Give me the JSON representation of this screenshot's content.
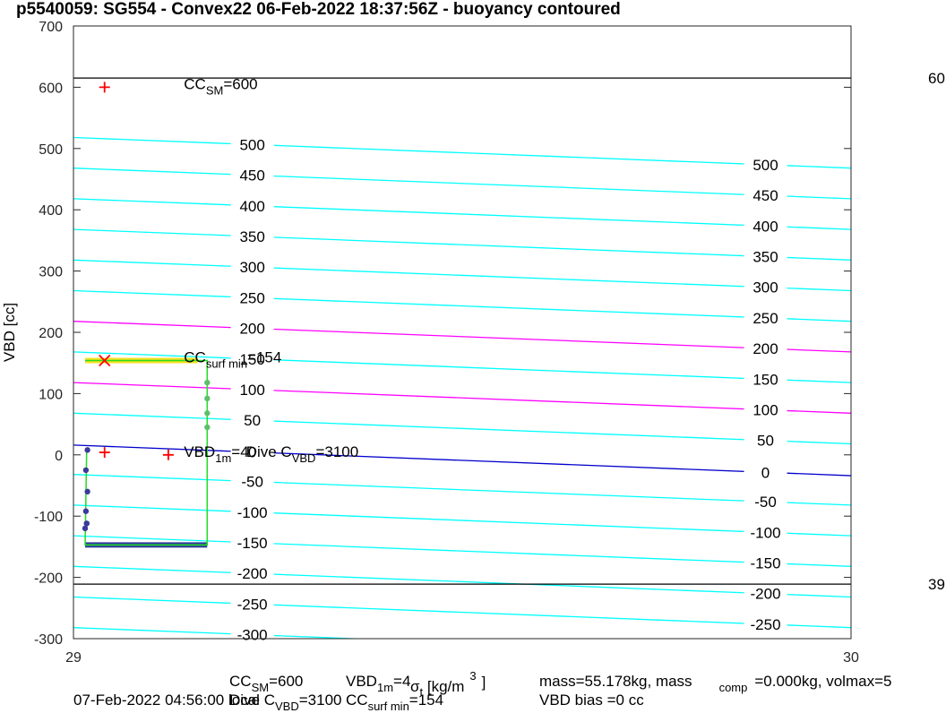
{
  "chart_data": {
    "type": "contour",
    "title": "p5540059: SG554 - Convex22 06-Feb-2022 18:37:56Z - buoyancy contoured",
    "ylabel": "VBD [cc]",
    "xlabel": [
      "σ",
      "t",
      " [kg/m",
      "3",
      "]"
    ],
    "xlim": [
      29,
      30
    ],
    "xticks": [
      29,
      30
    ],
    "ylim": [
      -300,
      700
    ],
    "yticks": [
      -300,
      -200,
      -100,
      0,
      100,
      200,
      300,
      400,
      500,
      600,
      700
    ],
    "contours": {
      "x": [
        29,
        30
      ],
      "label_x": [
        29.23,
        29.89
      ],
      "lines": [
        {
          "level": 500,
          "color": "#00ffff",
          "values": [
            518,
            468
          ]
        },
        {
          "level": 450,
          "color": "#00ffff",
          "values": [
            468,
            418
          ]
        },
        {
          "level": 400,
          "color": "#00ffff",
          "values": [
            418,
            368
          ]
        },
        {
          "level": 350,
          "color": "#00ffff",
          "values": [
            368,
            318
          ]
        },
        {
          "level": 300,
          "color": "#00ffff",
          "values": [
            318,
            268
          ]
        },
        {
          "level": 250,
          "color": "#00ffff",
          "values": [
            268,
            218
          ]
        },
        {
          "level": 200,
          "color": "#ff00ff",
          "values": [
            218,
            168
          ]
        },
        {
          "level": 150,
          "color": "#00ffff",
          "values": [
            168,
            118
          ]
        },
        {
          "level": 100,
          "color": "#ff00ff",
          "values": [
            118,
            68
          ]
        },
        {
          "level": 50,
          "color": "#00ffff",
          "values": [
            68,
            18
          ]
        },
        {
          "level": 0,
          "color": "#0000cc",
          "values": [
            16,
            -34
          ]
        },
        {
          "level": -50,
          "color": "#00ffff",
          "values": [
            -32,
            -82
          ]
        },
        {
          "level": -100,
          "color": "#00ffff",
          "values": [
            -82,
            -132
          ]
        },
        {
          "level": -150,
          "color": "#00ffff",
          "values": [
            -132,
            -182
          ]
        },
        {
          "level": -200,
          "color": "#00ffff",
          "values": [
            -182,
            -232
          ]
        },
        {
          "level": -250,
          "color": "#00ffff",
          "values": [
            -232,
            -282
          ]
        },
        {
          "level": -300,
          "color": "#00ffff",
          "values": [
            -282,
            -332
          ]
        }
      ]
    },
    "hlines": [
      {
        "value": 615,
        "color": "#000000",
        "edge_label": "60"
      },
      {
        "value": -211,
        "color": "#000000",
        "edge_label": "39"
      }
    ],
    "bands": [
      {
        "color": "#f5e11d",
        "x": [
          29.015,
          29.16
        ],
        "value": 154
      },
      {
        "color": "#2f3f9a",
        "x": [
          29.015,
          29.172
        ],
        "value": -147
      }
    ],
    "trajectory": {
      "color": "#22dd22",
      "x": [
        29.015,
        29.172,
        29.172,
        29.015,
        29.017
      ],
      "y": [
        154,
        154,
        -147,
        -147,
        8
      ]
    },
    "points": {
      "x": [
        29.018,
        29.016,
        29.018,
        29.016,
        29.017,
        29.015,
        29.017,
        29.172,
        29.172,
        29.172,
        29.172
      ],
      "y": [
        8,
        -25,
        -60,
        -92,
        -112,
        -120,
        -112,
        118,
        92,
        68,
        45
      ],
      "colors": [
        "#3b3a9a",
        "#3b3a9a",
        "#3b3a9a",
        "#3b3a9a",
        "#3b3a9a",
        "#3b3a9a",
        "#3b3a9a",
        "#5cbf6b",
        "#5cbf6b",
        "#5cbf6b",
        "#5cbf6b"
      ]
    },
    "markers": [
      {
        "x": 29.04,
        "y": 600,
        "symbol": "+",
        "color": "#ff0000"
      },
      {
        "x": 29.04,
        "y": 154,
        "symbol": "x",
        "color": "#ff0000"
      },
      {
        "x": 29.04,
        "y": 4,
        "symbol": "+",
        "color": "#ff0000"
      },
      {
        "x": 29.122,
        "y": 0,
        "symbol": "+",
        "color": "#ff0000"
      }
    ],
    "annotations": [
      {
        "x": 29.142,
        "y": 600,
        "parts": [
          "CC",
          "SM",
          "=600"
        ]
      },
      {
        "x": 29.142,
        "y": 154,
        "parts": [
          "CC",
          "surf min",
          "=154"
        ]
      },
      {
        "x": 29.142,
        "y": 0,
        "parts": [
          "VBD",
          "1m",
          "=4"
        ]
      },
      {
        "x": 29.222,
        "y": 0,
        "parts": [
          "Dive C",
          "VBD",
          "=3100"
        ]
      }
    ],
    "footer": [
      [
        "CC",
        "SM",
        "=600"
      ],
      [
        "VBD",
        "1m",
        "=4"
      ],
      [
        "mass=55.178kg, mass",
        "comp",
        "=0.000kg, volmax=5"
      ],
      [
        "07-Feb-2022 04:56:00 local"
      ],
      [
        "Dive C",
        "VBD",
        "=3100"
      ],
      [
        "CC",
        "surf min",
        "=154"
      ],
      [
        "VBD bias =0 cc"
      ]
    ]
  }
}
